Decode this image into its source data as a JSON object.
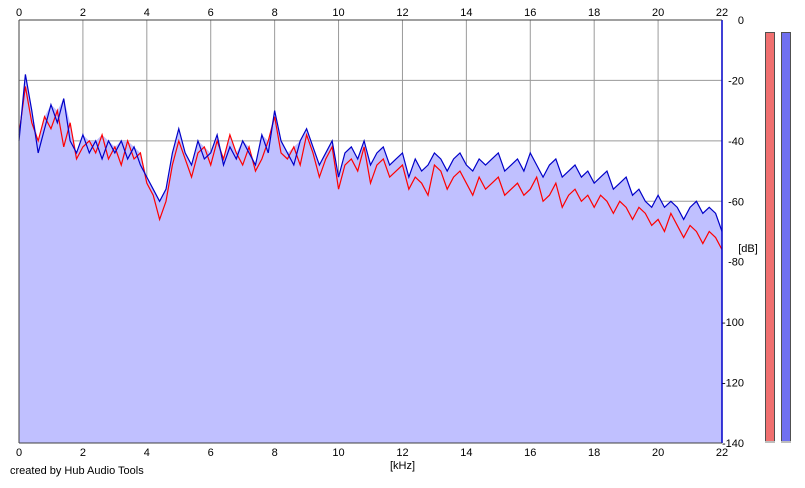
{
  "app": {
    "credit": "created by Hub Audio Tools"
  },
  "chart_data": {
    "type": "line",
    "title": "",
    "xlabel": "[kHz]",
    "ylabel": "[dB]",
    "xlim": [
      0,
      22
    ],
    "ylim": [
      -140,
      0
    ],
    "xticks": [
      "0",
      "2",
      "4",
      "6",
      "8",
      "10",
      "12",
      "14",
      "16",
      "18",
      "20",
      "22"
    ],
    "yticks": [
      "0",
      "-20",
      "-40",
      "-60",
      "-80",
      "-100",
      "-120",
      "-140"
    ],
    "grid": true,
    "fill_color": "#c0c0ff",
    "series": [
      {
        "color": "#ff0000",
        "x": [
          0,
          0.2,
          0.4,
          0.6,
          0.8,
          1,
          1.2,
          1.4,
          1.6,
          1.8,
          2,
          2.2,
          2.4,
          2.6,
          2.8,
          3,
          3.2,
          3.4,
          3.6,
          3.8,
          4,
          4.2,
          4.4,
          4.6,
          4.8,
          5,
          5.2,
          5.4,
          5.6,
          5.8,
          6,
          6.2,
          6.4,
          6.6,
          6.8,
          7,
          7.2,
          7.4,
          7.6,
          7.8,
          8,
          8.2,
          8.4,
          8.6,
          8.8,
          9,
          9.2,
          9.4,
          9.6,
          9.8,
          10,
          10.2,
          10.4,
          10.6,
          10.8,
          11,
          11.2,
          11.4,
          11.6,
          11.8,
          12,
          12.2,
          12.4,
          12.6,
          12.8,
          13,
          13.2,
          13.4,
          13.6,
          13.8,
          14,
          14.2,
          14.4,
          14.6,
          14.8,
          15,
          15.2,
          15.4,
          15.6,
          15.8,
          16,
          16.2,
          16.4,
          16.6,
          16.8,
          17,
          17.2,
          17.4,
          17.6,
          17.8,
          18,
          18.2,
          18.4,
          18.6,
          18.8,
          19,
          19.2,
          19.4,
          19.6,
          19.8,
          20,
          20.2,
          20.4,
          20.6,
          20.8,
          21,
          21.2,
          21.4,
          21.6,
          21.8,
          22
        ],
        "values": [
          -38,
          -22,
          -34,
          -40,
          -32,
          -36,
          -30,
          -42,
          -34,
          -46,
          -42,
          -40,
          -44,
          -38,
          -46,
          -42,
          -48,
          -40,
          -46,
          -44,
          -54,
          -58,
          -66,
          -60,
          -48,
          -40,
          -46,
          -52,
          -44,
          -42,
          -48,
          -40,
          -46,
          -38,
          -44,
          -48,
          -42,
          -50,
          -46,
          -40,
          -32,
          -44,
          -46,
          -42,
          -48,
          -38,
          -44,
          -52,
          -46,
          -42,
          -56,
          -48,
          -46,
          -50,
          -42,
          -54,
          -48,
          -46,
          -52,
          -50,
          -48,
          -56,
          -52,
          -54,
          -58,
          -48,
          -50,
          -56,
          -52,
          -50,
          -54,
          -58,
          -52,
          -56,
          -54,
          -52,
          -58,
          -56,
          -54,
          -58,
          -56,
          -52,
          -60,
          -58,
          -54,
          -62,
          -58,
          -56,
          -60,
          -58,
          -62,
          -58,
          -60,
          -64,
          -60,
          -62,
          -66,
          -62,
          -64,
          -68,
          -66,
          -70,
          -64,
          -68,
          -72,
          -68,
          -70,
          -74,
          -70,
          -72,
          -76
        ]
      },
      {
        "color": "#0000c8",
        "x": [
          0,
          0.2,
          0.4,
          0.6,
          0.8,
          1,
          1.2,
          1.4,
          1.6,
          1.8,
          2,
          2.2,
          2.4,
          2.6,
          2.8,
          3,
          3.2,
          3.4,
          3.6,
          3.8,
          4,
          4.2,
          4.4,
          4.6,
          4.8,
          5,
          5.2,
          5.4,
          5.6,
          5.8,
          6,
          6.2,
          6.4,
          6.6,
          6.8,
          7,
          7.2,
          7.4,
          7.6,
          7.8,
          8,
          8.2,
          8.4,
          8.6,
          8.8,
          9,
          9.2,
          9.4,
          9.6,
          9.8,
          10,
          10.2,
          10.4,
          10.6,
          10.8,
          11,
          11.2,
          11.4,
          11.6,
          11.8,
          12,
          12.2,
          12.4,
          12.6,
          12.8,
          13,
          13.2,
          13.4,
          13.6,
          13.8,
          14,
          14.2,
          14.4,
          14.6,
          14.8,
          15,
          15.2,
          15.4,
          15.6,
          15.8,
          16,
          16.2,
          16.4,
          16.6,
          16.8,
          17,
          17.2,
          17.4,
          17.6,
          17.8,
          18,
          18.2,
          18.4,
          18.6,
          18.8,
          19,
          19.2,
          19.4,
          19.6,
          19.8,
          20,
          20.2,
          20.4,
          20.6,
          20.8,
          21,
          21.2,
          21.4,
          21.6,
          21.8,
          22
        ],
        "values": [
          -40,
          -18,
          -30,
          -44,
          -36,
          -28,
          -34,
          -26,
          -40,
          -44,
          -38,
          -44,
          -40,
          -46,
          -40,
          -44,
          -40,
          -46,
          -42,
          -48,
          -52,
          -56,
          -60,
          -56,
          -44,
          -36,
          -44,
          -48,
          -40,
          -46,
          -44,
          -38,
          -48,
          -42,
          -46,
          -40,
          -44,
          -48,
          -38,
          -44,
          -30,
          -40,
          -44,
          -48,
          -40,
          -36,
          -42,
          -48,
          -44,
          -40,
          -52,
          -44,
          -42,
          -46,
          -40,
          -48,
          -44,
          -42,
          -48,
          -46,
          -44,
          -52,
          -46,
          -50,
          -48,
          -44,
          -46,
          -50,
          -46,
          -44,
          -48,
          -50,
          -46,
          -48,
          -46,
          -44,
          -50,
          -48,
          -46,
          -50,
          -44,
          -48,
          -52,
          -48,
          -46,
          -52,
          -50,
          -48,
          -52,
          -50,
          -54,
          -52,
          -50,
          -56,
          -54,
          -52,
          -58,
          -56,
          -60,
          -62,
          -58,
          -62,
          -60,
          -62,
          -66,
          -62,
          -60,
          -64,
          -62,
          -64,
          -70
        ]
      }
    ],
    "meters": [
      {
        "color": "#f07070"
      },
      {
        "color": "#7070f0"
      }
    ]
  }
}
